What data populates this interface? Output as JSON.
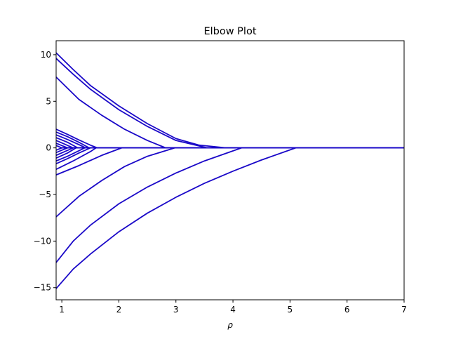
{
  "chart_data": {
    "type": "line",
    "title": "Elbow Plot",
    "xlabel": "ρ",
    "ylabel": "",
    "xlim": [
      0.9,
      7
    ],
    "ylim": [
      -16.3,
      11.5
    ],
    "xticks": [
      1,
      2,
      3,
      4,
      5,
      6,
      7
    ],
    "xtick_labels": [
      "1",
      "2",
      "3",
      "4",
      "5",
      "6",
      "7"
    ],
    "yticks": [
      -15,
      -10,
      -5,
      0,
      5,
      10
    ],
    "ytick_labels": [
      "−15",
      "−10",
      "−5",
      "0",
      "5",
      "10"
    ],
    "grid": false,
    "line_color": "#1a08c8",
    "series": [
      {
        "x": [
          0.9,
          1.2,
          1.5,
          2.0,
          2.5,
          3.0,
          3.4,
          3.88,
          7.0
        ],
        "y": [
          10.2,
          8.4,
          6.7,
          4.5,
          2.6,
          1.0,
          0.3,
          0,
          0
        ]
      },
      {
        "x": [
          0.9,
          1.2,
          1.5,
          2.0,
          2.5,
          3.0,
          3.55,
          7.0
        ],
        "y": [
          9.6,
          7.9,
          6.3,
          4.1,
          2.3,
          0.8,
          0,
          0
        ]
      },
      {
        "x": [
          0.9,
          1.3,
          1.7,
          2.1,
          2.5,
          2.82,
          7.0
        ],
        "y": [
          7.6,
          5.2,
          3.5,
          2.0,
          0.8,
          0,
          0
        ]
      },
      {
        "x": [
          0.9,
          1.1,
          1.3,
          1.5,
          1.62,
          7.0
        ],
        "y": [
          2.0,
          1.45,
          0.85,
          0.3,
          0,
          0
        ]
      },
      {
        "x": [
          0.9,
          1.1,
          1.3,
          1.48,
          7.0
        ],
        "y": [
          1.7,
          1.2,
          0.6,
          0,
          0
        ]
      },
      {
        "x": [
          0.9,
          1.1,
          1.3,
          1.42,
          7.0
        ],
        "y": [
          1.4,
          0.9,
          0.35,
          0,
          0
        ]
      },
      {
        "x": [
          0.9,
          1.1,
          1.28,
          7.0
        ],
        "y": [
          1.1,
          0.6,
          0,
          0
        ]
      },
      {
        "x": [
          0.9,
          1.05,
          1.2,
          7.0
        ],
        "y": [
          0.8,
          0.4,
          0,
          0
        ]
      },
      {
        "x": [
          0.9,
          1.0,
          1.1,
          7.0
        ],
        "y": [
          0.5,
          0.25,
          0,
          0
        ]
      },
      {
        "x": [
          0.9,
          1.0,
          7.0
        ],
        "y": [
          0.25,
          0,
          0
        ]
      },
      {
        "x": [
          0.9,
          1.0,
          7.0
        ],
        "y": [
          -0.25,
          0,
          0
        ]
      },
      {
        "x": [
          0.9,
          1.0,
          1.1,
          7.0
        ],
        "y": [
          -0.5,
          -0.25,
          0,
          0
        ]
      },
      {
        "x": [
          0.9,
          1.05,
          1.2,
          7.0
        ],
        "y": [
          -0.8,
          -0.4,
          0,
          0
        ]
      },
      {
        "x": [
          0.9,
          1.1,
          1.25,
          7.0
        ],
        "y": [
          -1.1,
          -0.55,
          0,
          0
        ]
      },
      {
        "x": [
          0.9,
          1.1,
          1.3,
          1.4,
          7.0
        ],
        "y": [
          -1.4,
          -0.9,
          -0.3,
          0,
          0
        ]
      },
      {
        "x": [
          0.9,
          1.1,
          1.3,
          1.5,
          7.0
        ],
        "y": [
          -1.7,
          -1.15,
          -0.55,
          0,
          0
        ]
      },
      {
        "x": [
          0.9,
          1.2,
          1.5,
          1.6,
          7.0
        ],
        "y": [
          -2.3,
          -1.4,
          -0.4,
          0,
          0
        ]
      },
      {
        "x": [
          0.9,
          1.3,
          1.7,
          2.05,
          7.0
        ],
        "y": [
          -2.9,
          -1.9,
          -0.8,
          0,
          0
        ]
      },
      {
        "x": [
          0.9,
          1.3,
          1.7,
          2.1,
          2.5,
          2.98,
          7.0
        ],
        "y": [
          -7.4,
          -5.2,
          -3.5,
          -2.0,
          -0.9,
          0,
          0
        ]
      },
      {
        "x": [
          0.9,
          1.2,
          1.5,
          2.0,
          2.5,
          3.0,
          3.5,
          4.15,
          7.0
        ],
        "y": [
          -12.3,
          -10.0,
          -8.3,
          -6.0,
          -4.2,
          -2.7,
          -1.4,
          0,
          0
        ]
      },
      {
        "x": [
          0.9,
          1.2,
          1.5,
          2.0,
          2.5,
          3.0,
          3.5,
          4.0,
          4.5,
          5.1,
          7.0
        ],
        "y": [
          -15.1,
          -13.0,
          -11.4,
          -9.0,
          -7.0,
          -5.3,
          -3.8,
          -2.5,
          -1.3,
          0,
          0
        ]
      }
    ]
  }
}
